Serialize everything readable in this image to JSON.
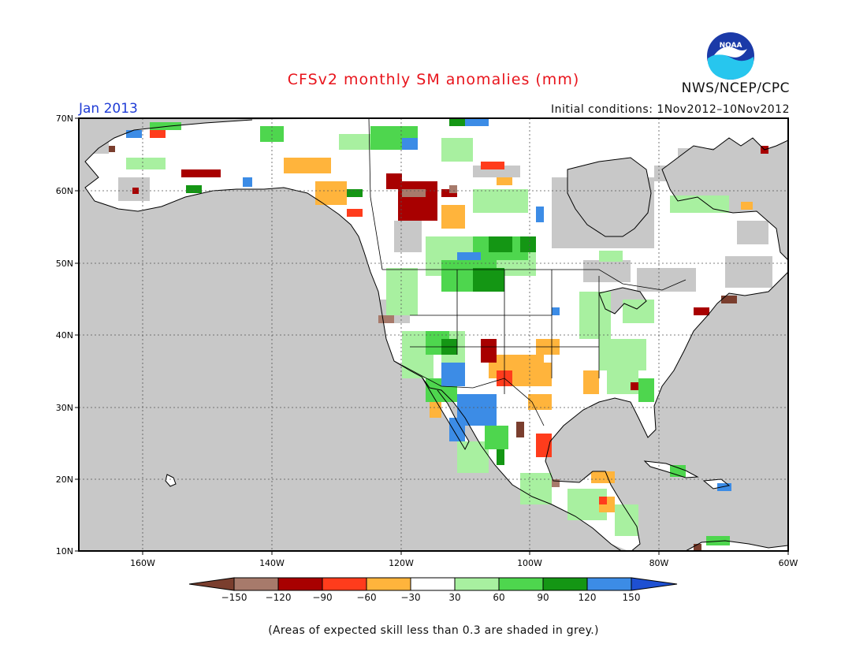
{
  "header": {
    "title": "CFSv2 monthly SM anomalies (mm)",
    "month": "Jan 2013",
    "organization": "NWS/NCEP/CPC",
    "initial_conditions": "Initial conditions: 1Nov2012–10Nov2012",
    "logo_text": "NOAA"
  },
  "map": {
    "lat_labels": [
      "70N",
      "60N",
      "50N",
      "40N",
      "30N",
      "20N",
      "10N"
    ],
    "lon_labels": [
      "160W",
      "140W",
      "120W",
      "100W",
      "80W",
      "60W"
    ],
    "colors": {
      "ocean": "#c8c8c8",
      "land_grey": "#c8c8c8",
      "land_white": "#ffffff",
      "coast": "#000000"
    }
  },
  "colorbar": {
    "labels": [
      "−150",
      "−120",
      "−90",
      "−60",
      "−30",
      "30",
      "60",
      "90",
      "120",
      "150"
    ],
    "colors": [
      "#7a3e2e",
      "#a77a6b",
      "#a80000",
      "#ff3c1c",
      "#ffb43c",
      "#ffffff",
      "#a8f0a0",
      "#4ed64e",
      "#149614",
      "#3c8ce6",
      "#1e50d2"
    ]
  },
  "footnote": "(Areas of expected skill less than 0.3 are shaded in grey.)"
}
